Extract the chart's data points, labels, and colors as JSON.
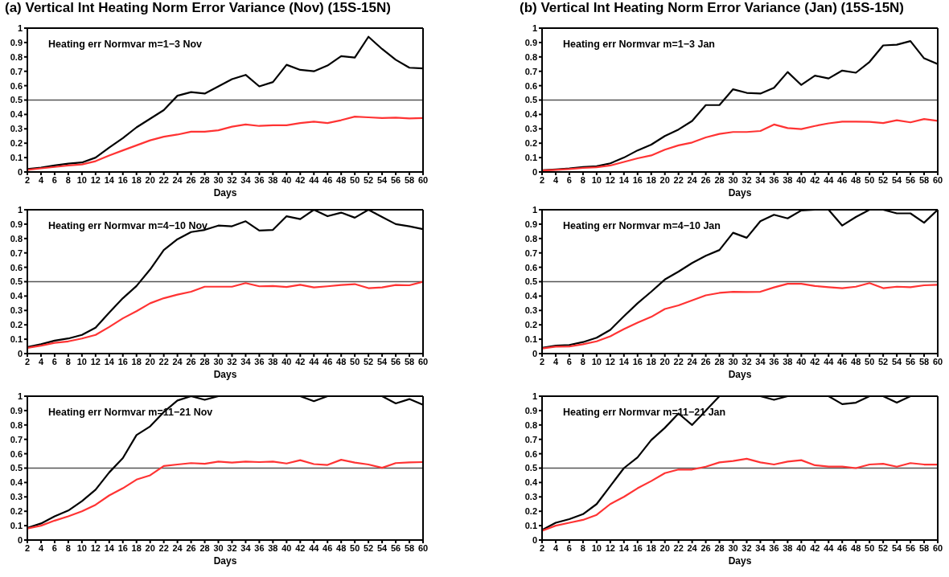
{
  "chart_data": [
    {
      "type": "line",
      "title": "(a) Vertical Int Heating Norm Error Variance (Nov) (15S-15N)",
      "xlabel": "Days",
      "annotations": [
        "Heating err Normvar m=1−3 Nov"
      ],
      "marker": "none",
      "x": [
        2,
        4,
        6,
        8,
        10,
        12,
        14,
        16,
        18,
        20,
        22,
        24,
        26,
        28,
        30,
        32,
        34,
        36,
        38,
        40,
        42,
        44,
        46,
        48,
        50,
        52,
        54,
        56,
        58,
        60
      ],
      "xlim": [
        2,
        60
      ],
      "xticks": [
        2,
        4,
        6,
        8,
        10,
        12,
        14,
        16,
        18,
        20,
        22,
        24,
        26,
        28,
        30,
        32,
        34,
        36,
        38,
        40,
        42,
        44,
        46,
        48,
        50,
        52,
        54,
        56,
        58,
        60
      ],
      "ylim": [
        0,
        1
      ],
      "yticks": [
        0,
        0.1,
        0.2,
        0.3,
        0.4,
        0.5,
        0.6,
        0.7,
        0.8,
        0.9,
        1
      ],
      "ref_lines": [
        {
          "axis": "y",
          "value": 0.5,
          "color": "#555555"
        }
      ],
      "series": [
        {
          "color": "#000000",
          "values": [
            0.02,
            0.03,
            0.045,
            0.058,
            0.066,
            0.1,
            0.17,
            0.235,
            0.31,
            0.37,
            0.43,
            0.53,
            0.555,
            0.545,
            0.595,
            0.645,
            0.675,
            0.595,
            0.625,
            0.745,
            0.71,
            0.7,
            0.74,
            0.805,
            0.795,
            0.94,
            0.855,
            0.78,
            0.725,
            0.72
          ]
        },
        {
          "color": "#ff3333",
          "values": [
            0.015,
            0.025,
            0.035,
            0.045,
            0.052,
            0.075,
            0.115,
            0.15,
            0.185,
            0.22,
            0.245,
            0.26,
            0.28,
            0.28,
            0.29,
            0.315,
            0.33,
            0.32,
            0.325,
            0.325,
            0.34,
            0.35,
            0.34,
            0.36,
            0.385,
            0.38,
            0.375,
            0.378,
            0.372,
            0.375
          ]
        }
      ]
    },
    {
      "type": "line",
      "title": "(b) Vertical Int Heating Norm Error Variance (Jan) (15S-15N)",
      "xlabel": "Days",
      "annotations": [
        "Heating err Normvar m=1−3 Jan"
      ],
      "marker": "none",
      "x": [
        2,
        4,
        6,
        8,
        10,
        12,
        14,
        16,
        18,
        20,
        22,
        24,
        26,
        28,
        30,
        32,
        34,
        36,
        38,
        40,
        42,
        44,
        46,
        48,
        50,
        52,
        54,
        56,
        58,
        60
      ],
      "xlim": [
        2,
        60
      ],
      "xticks": [
        2,
        4,
        6,
        8,
        10,
        12,
        14,
        16,
        18,
        20,
        22,
        24,
        26,
        28,
        30,
        32,
        34,
        36,
        38,
        40,
        42,
        44,
        46,
        48,
        50,
        52,
        54,
        56,
        58,
        60
      ],
      "ylim": [
        0,
        1
      ],
      "yticks": [
        0,
        0.1,
        0.2,
        0.3,
        0.4,
        0.5,
        0.6,
        0.7,
        0.8,
        0.9,
        1
      ],
      "ref_lines": [
        {
          "axis": "y",
          "value": 0.5,
          "color": "#555555"
        }
      ],
      "series": [
        {
          "color": "#000000",
          "values": [
            0.012,
            0.018,
            0.025,
            0.035,
            0.04,
            0.06,
            0.1,
            0.15,
            0.19,
            0.25,
            0.295,
            0.355,
            0.465,
            0.465,
            0.575,
            0.55,
            0.545,
            0.585,
            0.695,
            0.605,
            0.67,
            0.65,
            0.705,
            0.69,
            0.765,
            0.88,
            0.885,
            0.91,
            0.79,
            0.75
          ]
        },
        {
          "color": "#ff3333",
          "values": [
            0.01,
            0.015,
            0.02,
            0.028,
            0.033,
            0.045,
            0.07,
            0.095,
            0.115,
            0.155,
            0.185,
            0.205,
            0.24,
            0.265,
            0.278,
            0.278,
            0.285,
            0.33,
            0.305,
            0.298,
            0.32,
            0.338,
            0.35,
            0.35,
            0.348,
            0.34,
            0.36,
            0.345,
            0.368,
            0.355
          ]
        }
      ]
    },
    {
      "type": "line",
      "xlabel": "Days",
      "annotations": [
        "Heating err Normvar m=4−10 Nov"
      ],
      "marker": "none",
      "x": [
        2,
        4,
        6,
        8,
        10,
        12,
        14,
        16,
        18,
        20,
        22,
        24,
        26,
        28,
        30,
        32,
        34,
        36,
        38,
        40,
        42,
        44,
        46,
        48,
        50,
        52,
        54,
        56,
        58,
        60
      ],
      "xlim": [
        2,
        60
      ],
      "xticks": [
        2,
        4,
        6,
        8,
        10,
        12,
        14,
        16,
        18,
        20,
        22,
        24,
        26,
        28,
        30,
        32,
        34,
        36,
        38,
        40,
        42,
        44,
        46,
        48,
        50,
        52,
        54,
        56,
        58,
        60
      ],
      "ylim": [
        0,
        1
      ],
      "yticks": [
        0,
        0.1,
        0.2,
        0.3,
        0.4,
        0.5,
        0.6,
        0.7,
        0.8,
        0.9,
        1
      ],
      "ref_lines": [
        {
          "axis": "y",
          "value": 0.5,
          "color": "#555555"
        }
      ],
      "series": [
        {
          "color": "#000000",
          "values": [
            0.045,
            0.065,
            0.09,
            0.105,
            0.13,
            0.18,
            0.285,
            0.385,
            0.47,
            0.585,
            0.72,
            0.795,
            0.845,
            0.86,
            0.89,
            0.885,
            0.92,
            0.855,
            0.86,
            0.955,
            0.935,
            1,
            0.955,
            0.98,
            0.945,
            1,
            0.95,
            0.9,
            0.885,
            0.865
          ]
        },
        {
          "color": "#ff3333",
          "values": [
            0.04,
            0.055,
            0.075,
            0.085,
            0.105,
            0.13,
            0.185,
            0.245,
            0.295,
            0.35,
            0.385,
            0.41,
            0.43,
            0.465,
            0.465,
            0.465,
            0.49,
            0.468,
            0.47,
            0.463,
            0.478,
            0.46,
            0.468,
            0.477,
            0.483,
            0.455,
            0.46,
            0.477,
            0.475,
            0.5
          ]
        }
      ]
    },
    {
      "type": "line",
      "xlabel": "Days",
      "annotations": [
        "Heating err Normvar m=4−10 Jan"
      ],
      "marker": "none",
      "x": [
        2,
        4,
        6,
        8,
        10,
        12,
        14,
        16,
        18,
        20,
        22,
        24,
        26,
        28,
        30,
        32,
        34,
        36,
        38,
        40,
        42,
        44,
        46,
        48,
        50,
        52,
        54,
        56,
        58,
        60
      ],
      "xlim": [
        2,
        60
      ],
      "xticks": [
        2,
        4,
        6,
        8,
        10,
        12,
        14,
        16,
        18,
        20,
        22,
        24,
        26,
        28,
        30,
        32,
        34,
        36,
        38,
        40,
        42,
        44,
        46,
        48,
        50,
        52,
        54,
        56,
        58,
        60
      ],
      "ylim": [
        0,
        1
      ],
      "yticks": [
        0,
        0.1,
        0.2,
        0.3,
        0.4,
        0.5,
        0.6,
        0.7,
        0.8,
        0.9,
        1
      ],
      "ref_lines": [
        {
          "axis": "y",
          "value": 0.5,
          "color": "#555555"
        }
      ],
      "series": [
        {
          "color": "#000000",
          "values": [
            0.04,
            0.055,
            0.06,
            0.08,
            0.11,
            0.165,
            0.26,
            0.35,
            0.43,
            0.515,
            0.57,
            0.63,
            0.68,
            0.72,
            0.84,
            0.805,
            0.92,
            0.965,
            0.94,
            0.995,
            1,
            1,
            0.89,
            0.95,
            1,
            1,
            0.975,
            0.975,
            0.91,
            1
          ]
        },
        {
          "color": "#ff3333",
          "values": [
            0.035,
            0.048,
            0.05,
            0.065,
            0.085,
            0.12,
            0.17,
            0.215,
            0.255,
            0.31,
            0.335,
            0.37,
            0.405,
            0.422,
            0.43,
            0.428,
            0.43,
            0.46,
            0.485,
            0.485,
            0.47,
            0.462,
            0.455,
            0.465,
            0.49,
            0.455,
            0.465,
            0.462,
            0.475,
            0.478
          ]
        }
      ]
    },
    {
      "type": "line",
      "xlabel": "Days",
      "annotations": [
        "Heating err Normvar m=11−21 Nov"
      ],
      "marker": "none",
      "x": [
        2,
        4,
        6,
        8,
        10,
        12,
        14,
        16,
        18,
        20,
        22,
        24,
        26,
        28,
        30,
        32,
        34,
        36,
        38,
        40,
        42,
        44,
        46,
        48,
        50,
        52,
        54,
        56,
        58,
        60
      ],
      "xlim": [
        2,
        60
      ],
      "xticks": [
        2,
        4,
        6,
        8,
        10,
        12,
        14,
        16,
        18,
        20,
        22,
        24,
        26,
        28,
        30,
        32,
        34,
        36,
        38,
        40,
        42,
        44,
        46,
        48,
        50,
        52,
        54,
        56,
        58,
        60
      ],
      "ylim": [
        0,
        1
      ],
      "yticks": [
        0,
        0.1,
        0.2,
        0.3,
        0.4,
        0.5,
        0.6,
        0.7,
        0.8,
        0.9,
        1
      ],
      "ref_lines": [
        {
          "axis": "y",
          "value": 0.5,
          "color": "#555555"
        }
      ],
      "series": [
        {
          "color": "#000000",
          "values": [
            0.085,
            0.115,
            0.165,
            0.205,
            0.27,
            0.35,
            0.47,
            0.57,
            0.73,
            0.79,
            0.89,
            0.97,
            1,
            0.975,
            1,
            1,
            1,
            1,
            1,
            1,
            1,
            0.965,
            1,
            1,
            1,
            1,
            1,
            0.95,
            0.98,
            0.94
          ]
        },
        {
          "color": "#ff3333",
          "values": [
            0.08,
            0.1,
            0.135,
            0.165,
            0.2,
            0.245,
            0.31,
            0.36,
            0.42,
            0.45,
            0.515,
            0.525,
            0.535,
            0.53,
            0.545,
            0.538,
            0.545,
            0.542,
            0.545,
            0.532,
            0.555,
            0.528,
            0.522,
            0.558,
            0.538,
            0.525,
            0.502,
            0.535,
            0.54,
            0.542
          ]
        }
      ]
    },
    {
      "type": "line",
      "xlabel": "Days",
      "annotations": [
        "Heating err Normvar m=11−21 Jan"
      ],
      "marker": "none",
      "x": [
        2,
        4,
        6,
        8,
        10,
        12,
        14,
        16,
        18,
        20,
        22,
        24,
        26,
        28,
        30,
        32,
        34,
        36,
        38,
        40,
        42,
        44,
        46,
        48,
        50,
        52,
        54,
        56,
        58,
        60
      ],
      "xlim": [
        2,
        60
      ],
      "xticks": [
        2,
        4,
        6,
        8,
        10,
        12,
        14,
        16,
        18,
        20,
        22,
        24,
        26,
        28,
        30,
        32,
        34,
        36,
        38,
        40,
        42,
        44,
        46,
        48,
        50,
        52,
        54,
        56,
        58,
        60
      ],
      "ylim": [
        0,
        1
      ],
      "yticks": [
        0,
        0.1,
        0.2,
        0.3,
        0.4,
        0.5,
        0.6,
        0.7,
        0.8,
        0.9,
        1
      ],
      "ref_lines": [
        {
          "axis": "y",
          "value": 0.5,
          "color": "#555555"
        }
      ],
      "series": [
        {
          "color": "#000000",
          "values": [
            0.07,
            0.12,
            0.145,
            0.18,
            0.25,
            0.375,
            0.5,
            0.575,
            0.695,
            0.78,
            0.88,
            0.8,
            0.9,
            1,
            1,
            1,
            1,
            0.975,
            1,
            1,
            1,
            1,
            0.945,
            0.955,
            1,
            1,
            0.955,
            1,
            1,
            1
          ]
        },
        {
          "color": "#ff3333",
          "values": [
            0.065,
            0.1,
            0.12,
            0.14,
            0.175,
            0.25,
            0.3,
            0.36,
            0.41,
            0.465,
            0.49,
            0.49,
            0.51,
            0.54,
            0.55,
            0.565,
            0.54,
            0.525,
            0.545,
            0.555,
            0.52,
            0.51,
            0.51,
            0.5,
            0.525,
            0.53,
            0.51,
            0.535,
            0.525,
            0.525
          ]
        }
      ]
    }
  ]
}
